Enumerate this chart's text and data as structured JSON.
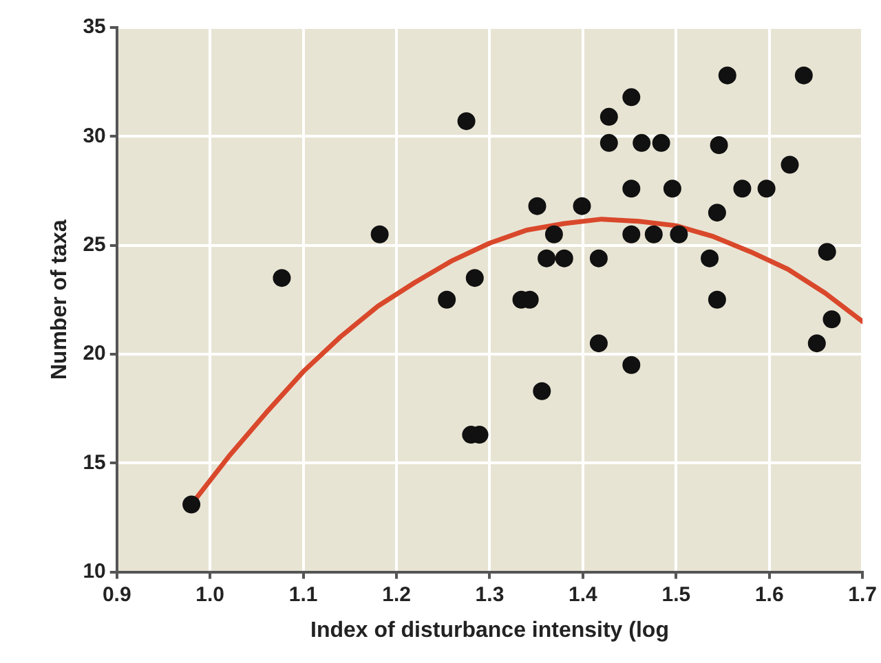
{
  "chart_data": {
    "type": "scatter",
    "xlabel": "Index of disturbance intensity (log",
    "ylabel": "Number of taxa",
    "xlim": [
      0.9,
      1.7
    ],
    "xticks": [
      0.9,
      {
        "value": 1.0,
        "label": "1.0"
      },
      1.1,
      1.2,
      1.3,
      1.4,
      1.5,
      1.6,
      1.7
    ],
    "ylim": [
      10,
      35
    ],
    "yticks": [
      10,
      15,
      20,
      25,
      30,
      35
    ],
    "grid": true,
    "legend": false,
    "series": [
      {
        "color": "#111111",
        "marker": "circle",
        "x": [
          0.98,
          1.077,
          1.182,
          1.254,
          1.275,
          1.284,
          1.28,
          1.289,
          1.334,
          1.343,
          1.351,
          1.356,
          1.361,
          1.369,
          1.38,
          1.399,
          1.417,
          1.417,
          1.428,
          1.428,
          1.452,
          1.452,
          1.452,
          1.452,
          1.463,
          1.484,
          1.496,
          1.476,
          1.503,
          1.536,
          1.544,
          1.544,
          1.546,
          1.555,
          1.571,
          1.597,
          1.622,
          1.637,
          1.662,
          1.667,
          1.651
        ],
        "values": [
          13.1,
          23.5,
          25.5,
          22.5,
          30.7,
          23.5,
          16.3,
          16.3,
          22.5,
          22.5,
          26.8,
          18.3,
          24.4,
          25.5,
          24.4,
          26.8,
          24.4,
          20.5,
          30.9,
          29.7,
          31.8,
          27.6,
          25.5,
          19.5,
          29.7,
          29.7,
          27.6,
          25.5,
          25.5,
          24.4,
          22.5,
          26.5,
          29.6,
          32.8,
          27.6,
          27.6,
          28.7,
          32.8,
          24.7,
          21.6,
          20.5
        ]
      },
      {
        "type": "line",
        "color": "#d9482b",
        "line_style": "solid",
        "marker": "none",
        "x": [
          0.98,
          1.02,
          1.06,
          1.1,
          1.14,
          1.18,
          1.22,
          1.26,
          1.3,
          1.34,
          1.38,
          1.42,
          1.46,
          1.5,
          1.54,
          1.58,
          1.62,
          1.66,
          1.7
        ],
        "values": [
          13.1,
          15.3,
          17.3,
          19.2,
          20.8,
          22.2,
          23.3,
          24.3,
          25.1,
          25.7,
          26.0,
          26.2,
          26.1,
          25.9,
          25.4,
          24.7,
          23.9,
          22.8,
          21.5
        ]
      }
    ]
  }
}
